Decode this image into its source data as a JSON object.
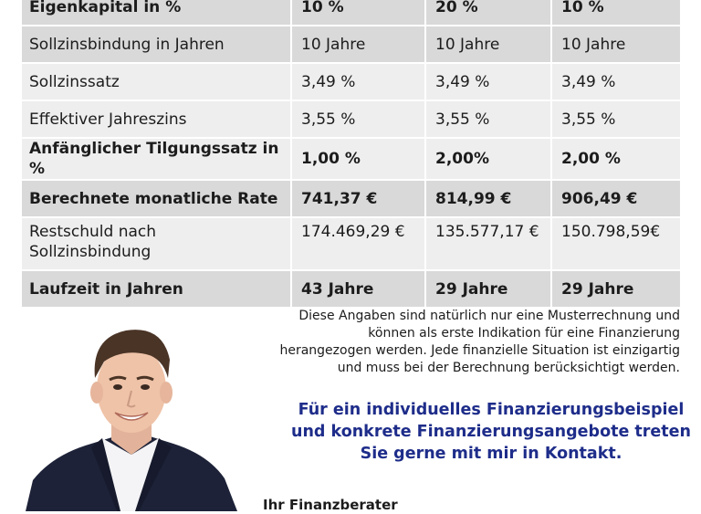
{
  "table": {
    "rows": [
      {
        "label": "Eigenkapital in %",
        "values": [
          "10 %",
          "20 %",
          "10 %"
        ]
      },
      {
        "label": "Sollzinsbindung in Jahren",
        "values": [
          "10 Jahre",
          "10 Jahre",
          "10 Jahre"
        ]
      },
      {
        "label": "Sollzinssatz",
        "values": [
          "3,49 %",
          "3,49 %",
          "3,49 %"
        ]
      },
      {
        "label": "Effektiver Jahreszins",
        "values": [
          "3,55 %",
          "3,55 %",
          "3,55 %"
        ]
      },
      {
        "label": "Anfänglicher Tilgungssatz in %",
        "values": [
          "1,00 %",
          "2,00%",
          "2,00 %"
        ]
      },
      {
        "label": "Berechnete monatliche Rate",
        "values": [
          "741,37 €",
          "814,99 €",
          "906,49 €"
        ]
      },
      {
        "label_line1": "Restschuld nach",
        "label_line2": "Sollzinsbindung",
        "values": [
          "174.469,29 €",
          "135.577,17 €",
          "150.798,59€"
        ]
      },
      {
        "label": "Laufzeit in Jahren",
        "values": [
          "43 Jahre",
          "29 Jahre",
          "29 Jahre"
        ]
      }
    ]
  },
  "disclaimer": {
    "line1": "Diese Angaben sind natürlich nur eine Musterrechnung und",
    "line2": "können als erste Indikation für eine Finanzierung",
    "line3": "herangezogen werden. Jede finanzielle Situation ist einzigartig",
    "line4": "und muss bei der Berechnung berücksichtigt werden."
  },
  "cta": {
    "line1": "Für ein individuelles Finanzierungsbeispiel",
    "line2": "und konkrete Finanzierungsangebote treten",
    "line3": "Sie gerne mit mir in Kontakt."
  },
  "advisor": {
    "title": "Ihr Finanzberater"
  },
  "colors": {
    "cta_blue": "#1e2d8a",
    "row_dark": "#d9d9d9",
    "row_light": "#eeeeee"
  }
}
